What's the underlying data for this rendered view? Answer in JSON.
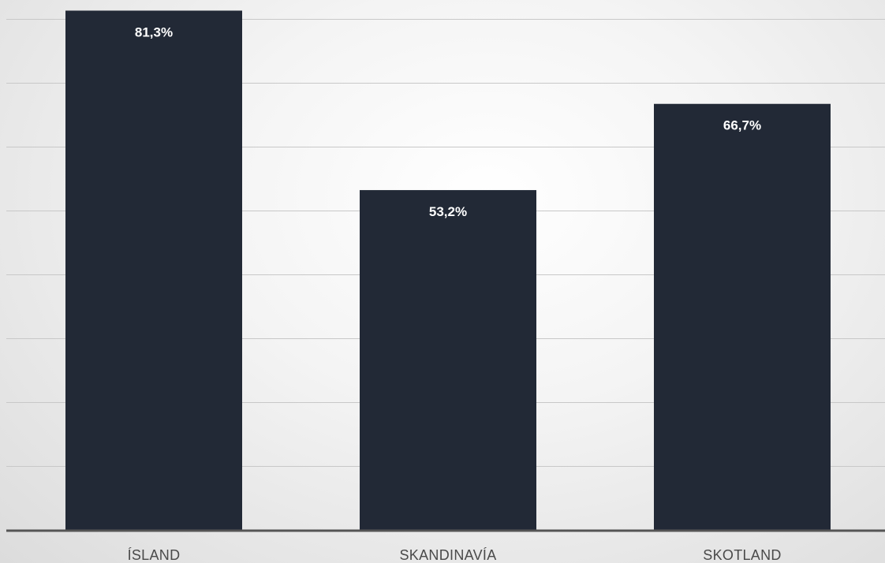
{
  "chart_data": {
    "type": "bar",
    "categories": [
      "ÍSLAND",
      "SKANDINAVÍA",
      "SKOTLAND"
    ],
    "values": [
      81.3,
      53.2,
      66.7
    ],
    "value_labels": [
      "81,3%",
      "53,2%",
      "66,7%"
    ],
    "title": "",
    "xlabel": "",
    "ylabel": "",
    "ylim": [
      0,
      80
    ],
    "grid": true,
    "legend": "none",
    "bar_color": "#222936",
    "grid_color": "#c8c8c8",
    "axis_color": "#555555",
    "label_color": "#ffffff",
    "category_label_color": "#4a4a4a"
  }
}
